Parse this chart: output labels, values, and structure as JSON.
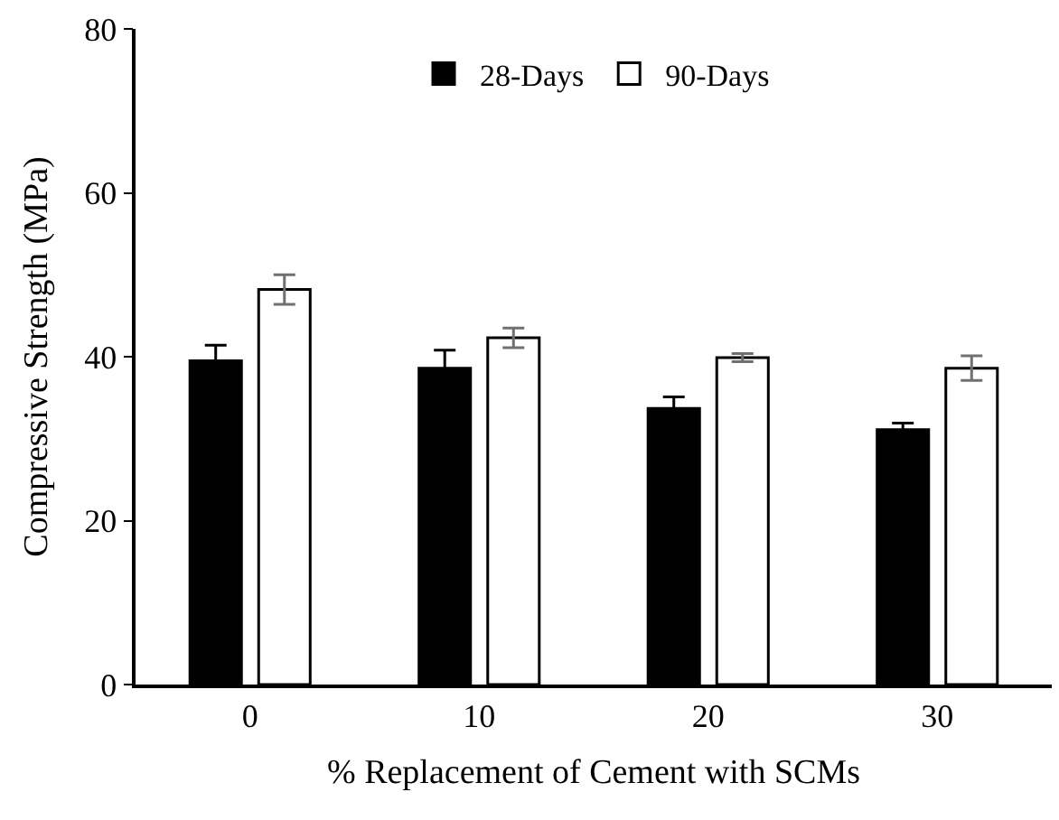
{
  "chart_data": {
    "type": "bar",
    "xlabel": "% Replacement of Cement with SCMs",
    "ylabel": "Compressive Strength (MPa)",
    "categories": [
      "0",
      "10",
      "20",
      "30"
    ],
    "series": [
      {
        "name": "28-Days",
        "color": "#000000",
        "values": [
          39.5,
          38.6,
          33.7,
          31.1
        ],
        "errors": [
          1.9,
          2.2,
          1.4,
          0.8
        ]
      },
      {
        "name": "90-Days",
        "color": "#ffffff",
        "values": [
          48.2,
          42.3,
          39.9,
          38.6
        ],
        "errors": [
          1.8,
          1.2,
          0.5,
          1.5
        ]
      }
    ],
    "ylim": [
      0,
      80
    ],
    "yticks": [
      0,
      20,
      40,
      60,
      80
    ],
    "legend": "top"
  }
}
